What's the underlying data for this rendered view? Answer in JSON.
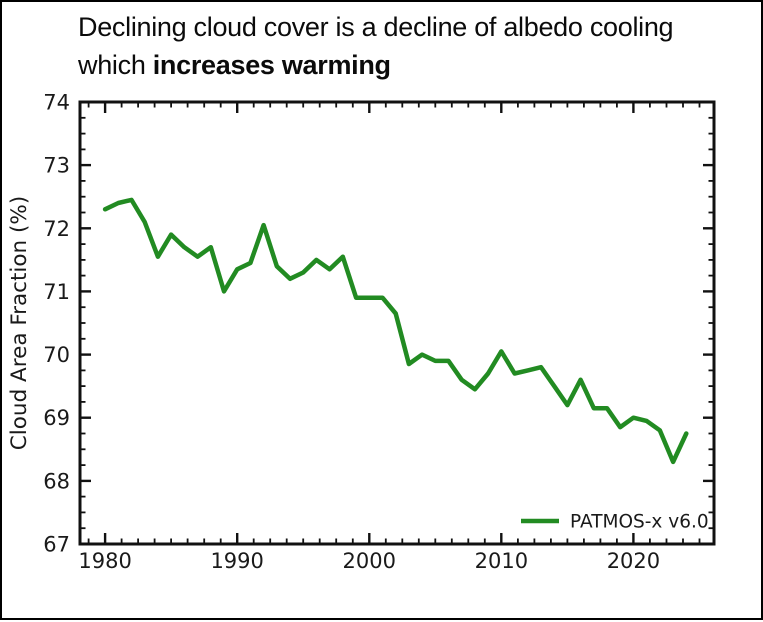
{
  "title": {
    "line1": "Declining cloud cover is a decline of albedo cooling",
    "line2_prefix": "which ",
    "line2_bold": "increases warming"
  },
  "colors": {
    "line": "#228B22",
    "axis": "#111111",
    "background": "#ffffff",
    "text": "#1a1a1a"
  },
  "chart_data": {
    "type": "line",
    "title": "",
    "xlabel": "",
    "ylabel": "Cloud Area Fraction (%)",
    "x_range": [
      1978.1,
      2026.1
    ],
    "y_range": [
      67,
      74
    ],
    "x_major_ticks": [
      1980,
      1990,
      2000,
      2010,
      2020
    ],
    "x_tick_labels": [
      "1980",
      "1990",
      "2000",
      "2010",
      "2020"
    ],
    "x_minor_step": 1.25,
    "y_major_ticks": [
      67,
      68,
      69,
      70,
      71,
      72,
      73,
      74
    ],
    "y_tick_labels": [
      "67",
      "68",
      "69",
      "70",
      "71",
      "72",
      "73",
      "74"
    ],
    "y_minor_step": 0.25,
    "grid": false,
    "legend": {
      "position": "lower-right",
      "entries": [
        "PATMOS-x v6.0"
      ]
    },
    "series": [
      {
        "name": "PATMOS-x v6.0",
        "color": "#228B22",
        "x": [
          1980,
          1981,
          1982,
          1983,
          1984,
          1985,
          1986,
          1987,
          1988,
          1989,
          1990,
          1991,
          1992,
          1993,
          1994,
          1995,
          1996,
          1997,
          1998,
          1999,
          2000,
          2001,
          2002,
          2003,
          2004,
          2005,
          2006,
          2007,
          2008,
          2009,
          2010,
          2011,
          2012,
          2013,
          2014,
          2015,
          2016,
          2017,
          2018,
          2019,
          2020,
          2021,
          2022,
          2023,
          2024
        ],
        "values": [
          72.3,
          72.4,
          72.45,
          72.1,
          71.55,
          71.9,
          71.7,
          71.55,
          71.7,
          71.0,
          71.35,
          71.45,
          72.05,
          71.4,
          71.2,
          71.3,
          71.5,
          71.35,
          71.55,
          70.9,
          70.9,
          70.9,
          70.65,
          69.85,
          70.0,
          69.9,
          69.9,
          69.6,
          69.45,
          69.7,
          70.05,
          69.7,
          69.75,
          69.8,
          69.5,
          69.2,
          69.6,
          69.15,
          69.15,
          68.85,
          69.0,
          68.95,
          68.8,
          68.3,
          68.75
        ]
      }
    ]
  }
}
